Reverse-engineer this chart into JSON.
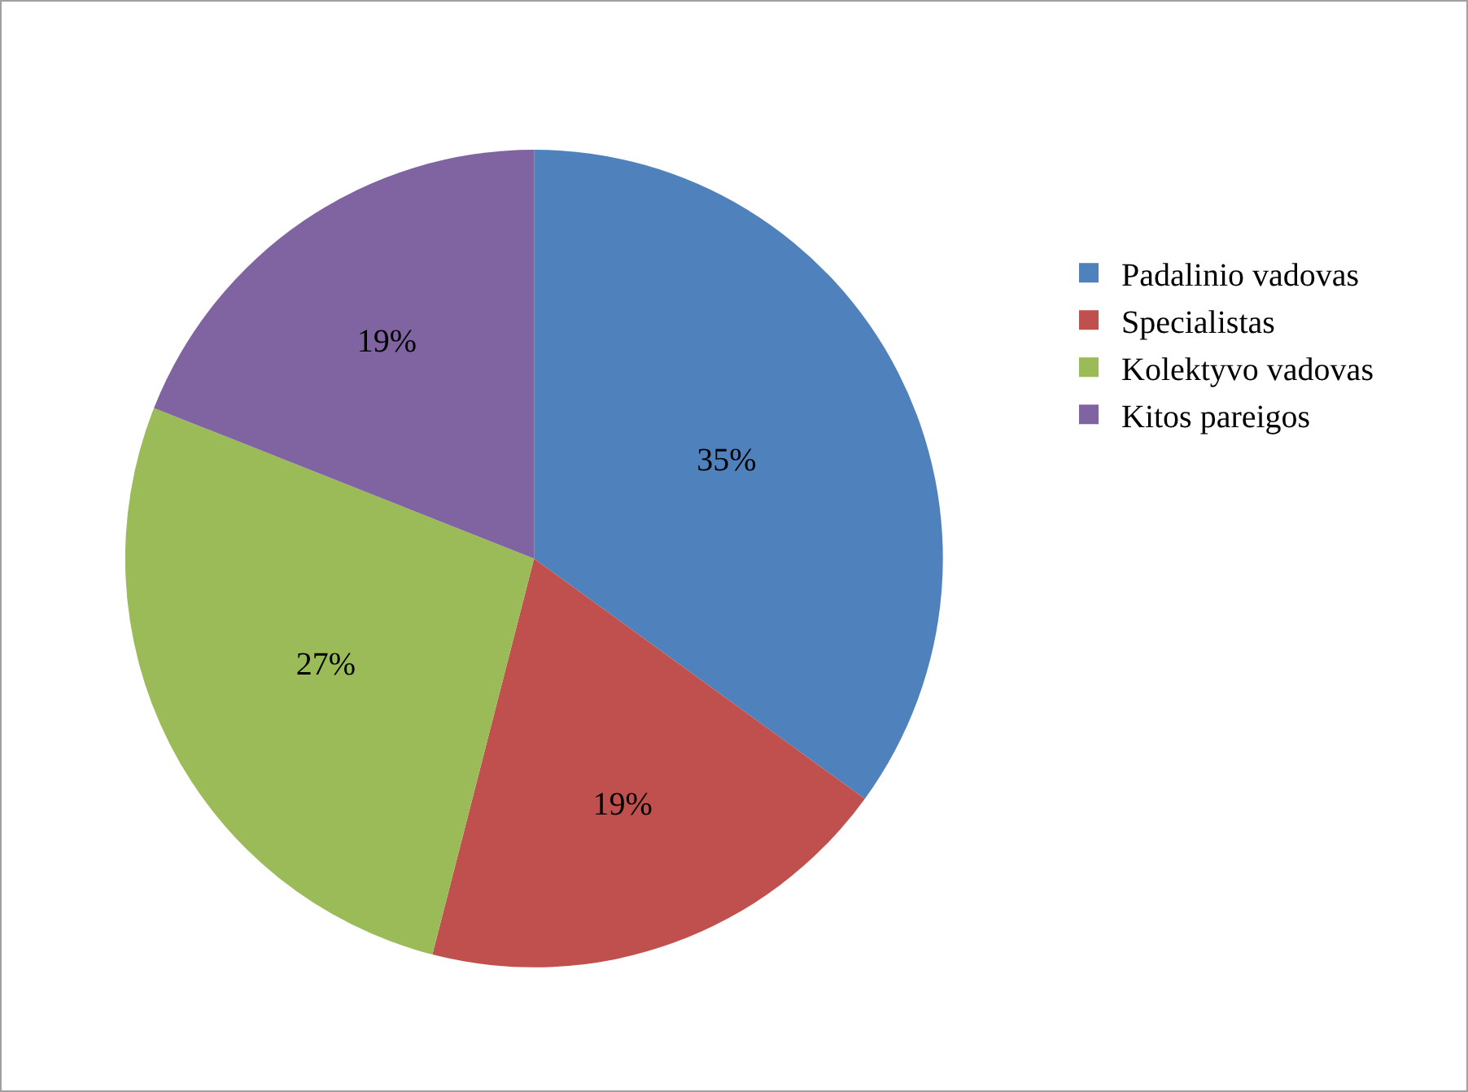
{
  "chart_data": {
    "type": "pie",
    "categories": [
      "Padalinio vadovas",
      "Specialistas",
      "Kolektyvo vadovas",
      "Kitos pareigos"
    ],
    "values": [
      35,
      19,
      27,
      19
    ],
    "colors": [
      "#4f81bd",
      "#c0504d",
      "#9bbb59",
      "#8064a2"
    ],
    "value_labels": [
      "35%",
      "19%",
      "27%",
      "19%"
    ],
    "legend": "right"
  }
}
